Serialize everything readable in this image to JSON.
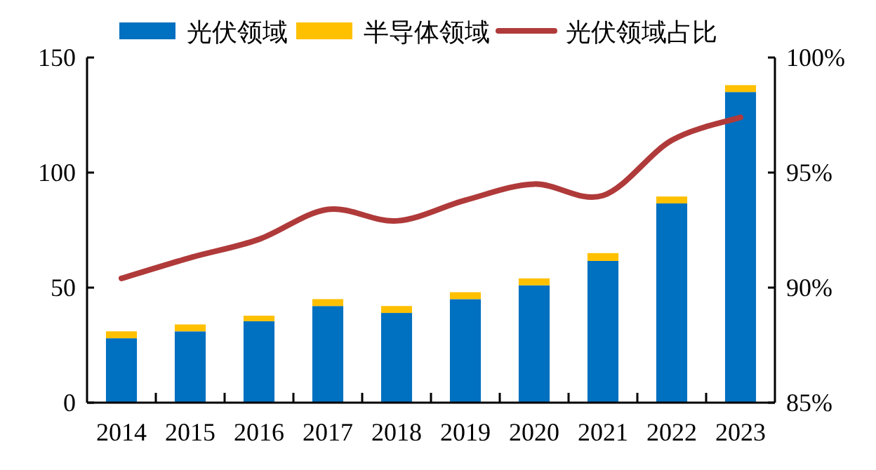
{
  "chart_data": {
    "type": "bar",
    "stacked": true,
    "legend": "top",
    "grid": false,
    "categories": [
      "2014",
      "2015",
      "2016",
      "2017",
      "2018",
      "2019",
      "2020",
      "2021",
      "2022",
      "2023"
    ],
    "ylim": [
      0,
      150
    ],
    "yticks": [
      0,
      50,
      100,
      150
    ],
    "y2lim": [
      85,
      100
    ],
    "y2ticks": [
      {
        "value": 85,
        "label": "85%"
      },
      {
        "value": 90,
        "label": "90%"
      },
      {
        "value": 95,
        "label": "95%"
      },
      {
        "value": 100,
        "label": "100%"
      }
    ],
    "series": [
      {
        "name": "光伏领域",
        "color": "#0070c0",
        "values": [
          28,
          31,
          35.4,
          42,
          39,
          45,
          51,
          61.6,
          86.6,
          135
        ]
      },
      {
        "name": "半导体领域",
        "color": "#ffc000",
        "values": [
          3,
          3,
          2.4,
          3,
          3,
          3,
          3,
          3.4,
          3,
          3
        ]
      },
      {
        "name": "光伏领域占比",
        "type": "line",
        "axis": "y2",
        "color": "#b03a3a",
        "values": [
          90.4,
          91.3,
          92.1,
          93.4,
          92.9,
          93.8,
          94.5,
          94.0,
          96.4,
          97.4
        ]
      }
    ]
  }
}
